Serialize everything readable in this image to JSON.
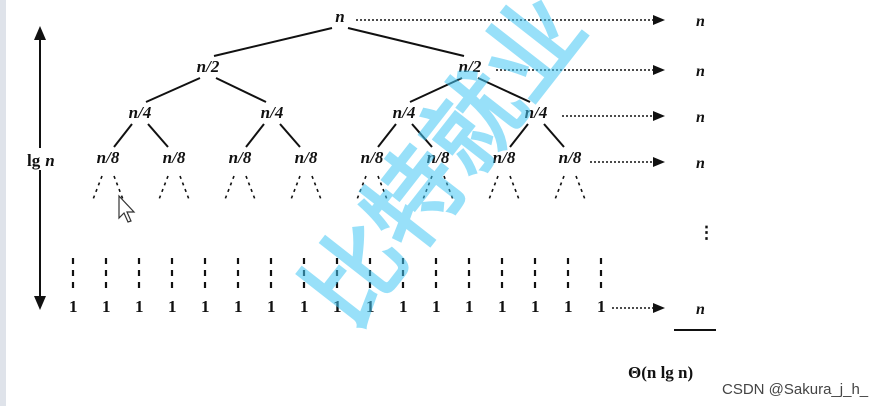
{
  "levels": [
    {
      "label": "n",
      "count": 1
    },
    {
      "label": "n/2",
      "count": 2
    },
    {
      "label": "n/4",
      "count": 4
    },
    {
      "label": "n/8",
      "count": 8
    }
  ],
  "row_costs": [
    "n",
    "n",
    "n",
    "n",
    "n"
  ],
  "leaf_label": "1",
  "leaf_count": 17,
  "height_label": "lg n",
  "total_cost": "Θ(n lg n)",
  "ellipsis": "⋮",
  "watermark": "比特就业",
  "credit": "CSDN @Sakura_j_h_",
  "colors": {
    "ink": "#111111",
    "watermark": "#44c8f5"
  }
}
